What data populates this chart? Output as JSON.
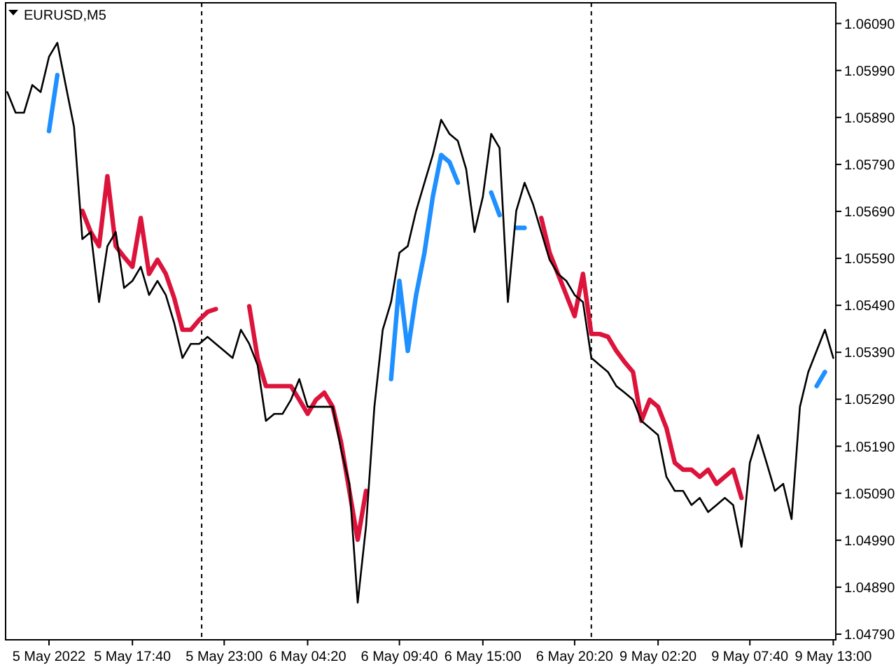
{
  "chart_data": {
    "type": "line",
    "title": "EURUSD,M5",
    "categories": [
      null,
      null,
      null,
      null,
      null,
      "5 May 2022",
      null,
      null,
      null,
      null,
      null,
      null,
      null,
      null,
      null,
      "5 May 17:40",
      null,
      null,
      null,
      null,
      null,
      null,
      null,
      null,
      null,
      null,
      "5 May 23:00",
      null,
      null,
      null,
      null,
      null,
      null,
      null,
      null,
      null,
      "6 May 04:20",
      null,
      null,
      null,
      null,
      null,
      null,
      null,
      null,
      null,
      null,
      "6 May 09:40",
      null,
      null,
      null,
      null,
      null,
      null,
      null,
      null,
      null,
      "6 May 15:00",
      null,
      null,
      null,
      null,
      null,
      null,
      null,
      null,
      null,
      null,
      "6 May 20:20",
      null,
      null,
      null,
      null,
      null,
      null,
      null,
      null,
      null,
      "9 May 02:20",
      null,
      null,
      null,
      null,
      null,
      null,
      null,
      null,
      null,
      null,
      "9 May 07:40",
      null,
      null,
      null,
      null,
      null,
      null,
      null,
      null,
      null,
      "9 May 13:00"
    ],
    "ylim": [
      1.04778,
      1.06134
    ],
    "yticks": [
      {
        "value": 1.0479,
        "label": "1.04790"
      },
      {
        "value": 1.0489,
        "label": "1.04890"
      },
      {
        "value": 1.0499,
        "label": "1.04990"
      },
      {
        "value": 1.0509,
        "label": "1.05090"
      },
      {
        "value": 1.0519,
        "label": "1.05190"
      },
      {
        "value": 1.0529,
        "label": "1.05290"
      },
      {
        "value": 1.0539,
        "label": "1.05390"
      },
      {
        "value": 1.0549,
        "label": "1.05490"
      },
      {
        "value": 1.0559,
        "label": "1.05590"
      },
      {
        "value": 1.0569,
        "label": "1.05690"
      },
      {
        "value": 1.0579,
        "label": "1.05790"
      },
      {
        "value": 1.0589,
        "label": "1.05890"
      },
      {
        "value": 1.0599,
        "label": "1.05990"
      },
      {
        "value": 1.0609,
        "label": "1.06090"
      }
    ],
    "series": [
      {
        "color": "#000000",
        "values": [
          1.05944,
          1.059,
          1.059,
          1.05959,
          1.05944,
          1.06019,
          1.06049,
          1.05959,
          1.0587,
          1.05631,
          1.05646,
          1.05497,
          1.05616,
          1.05646,
          1.05527,
          1.05542,
          1.05572,
          1.05512,
          1.05542,
          1.05512,
          1.05453,
          1.05378,
          1.05408,
          1.05408,
          1.05423,
          1.05408,
          1.05393,
          1.05378,
          1.05438,
          1.05408,
          1.05363,
          1.05244,
          1.05259,
          1.05259,
          1.05289,
          1.05333,
          1.05274,
          1.05274,
          1.05274,
          1.05274,
          1.05184,
          1.0511,
          1.04857,
          1.0502,
          1.05274,
          1.05438,
          1.05497,
          1.05602,
          1.05616,
          1.05691,
          1.05751,
          1.0581,
          1.05885,
          1.05855,
          1.0584,
          1.0578,
          1.05646,
          1.05721,
          1.05855,
          1.05825,
          1.05497,
          1.05691,
          1.05751,
          1.05706,
          1.05646,
          1.05587,
          1.05557,
          1.05542,
          1.05512,
          1.05497,
          1.05378,
          1.05363,
          1.05348,
          1.05318,
          1.05304,
          1.05289,
          1.05244,
          1.05229,
          1.05214,
          1.05125,
          1.05095,
          1.05095,
          1.05065,
          1.0508,
          1.0505,
          1.05065,
          1.0508,
          1.05065,
          1.04976,
          1.05155,
          1.05214,
          1.05155,
          1.05095,
          1.0511,
          1.05035,
          1.05274,
          1.05348,
          1.05393,
          1.05438,
          1.05378
        ]
      },
      {
        "color": "#dc143c",
        "values": [
          null,
          null,
          null,
          null,
          null,
          null,
          null,
          null,
          null,
          1.05691,
          1.05646,
          1.05616,
          1.05765,
          1.05616,
          1.05593,
          1.05572,
          1.05676,
          1.05557,
          1.05587,
          1.05557,
          1.05506,
          1.05438,
          1.05438,
          1.05459,
          1.05476,
          1.05482,
          null,
          null,
          null,
          1.05488,
          1.05378,
          1.05318,
          1.05318,
          1.05318,
          1.05318,
          1.05289,
          1.05259,
          1.05289,
          1.05304,
          1.05274,
          1.05199,
          1.05095,
          1.04991,
          1.05095,
          null,
          null,
          null,
          null,
          null,
          null,
          null,
          null,
          null,
          null,
          null,
          null,
          null,
          null,
          null,
          null,
          null,
          null,
          null,
          null,
          1.05676,
          1.05602,
          1.05557,
          1.05512,
          1.05467,
          1.05557,
          1.05429,
          1.05429,
          1.05423,
          1.05393,
          1.05369,
          1.05348,
          1.05244,
          1.05289,
          1.05274,
          1.05229,
          1.05155,
          1.0514,
          1.0514,
          1.05125,
          1.0514,
          1.0511,
          1.05125,
          1.0514,
          1.0508,
          null,
          null,
          null,
          null,
          null,
          null,
          null,
          null,
          null,
          null,
          null
        ]
      },
      {
        "color": "#1e90ff",
        "values": [
          null,
          null,
          null,
          null,
          null,
          1.05861,
          1.0598,
          null,
          null,
          null,
          null,
          null,
          null,
          null,
          null,
          null,
          null,
          null,
          null,
          null,
          null,
          null,
          null,
          null,
          null,
          null,
          null,
          null,
          null,
          null,
          null,
          null,
          null,
          null,
          null,
          null,
          null,
          null,
          null,
          null,
          null,
          null,
          null,
          null,
          null,
          null,
          1.05333,
          1.05542,
          1.05393,
          1.05512,
          1.05602,
          1.05721,
          1.0581,
          1.05795,
          1.05751,
          null,
          null,
          null,
          1.0573,
          1.05682,
          null,
          1.05655,
          1.05655,
          null,
          null,
          null,
          null,
          null,
          null,
          null,
          null,
          null,
          null,
          null,
          null,
          null,
          null,
          null,
          null,
          null,
          null,
          null,
          null,
          null,
          null,
          null,
          null,
          null,
          null,
          null,
          null,
          null,
          null,
          null,
          null,
          null,
          null,
          1.05318,
          1.05348,
          null
        ]
      }
    ]
  }
}
